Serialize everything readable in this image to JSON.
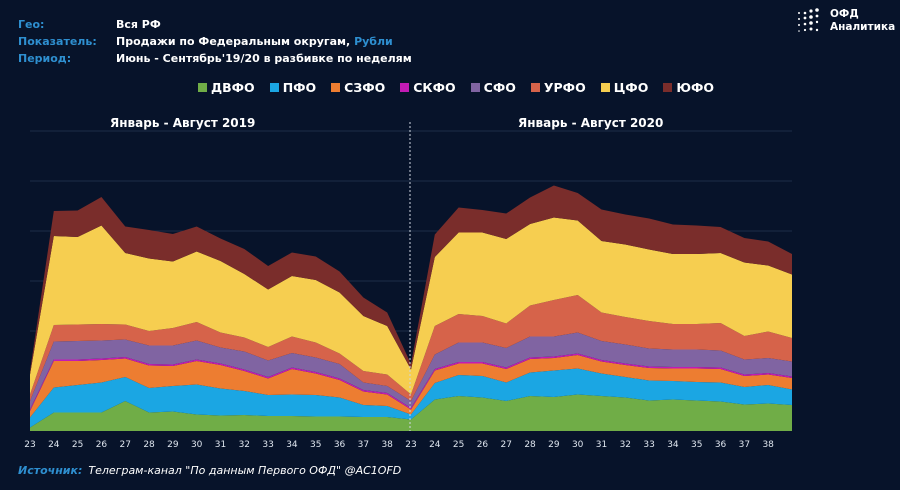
{
  "header": {
    "geo_label": "Гео:",
    "geo_value": "Вся РФ",
    "metric_label": "Показатель:",
    "metric_value": "Продажи по Федеральным округам,",
    "metric_unit": "Рубли",
    "period_label": "Период:",
    "period_value": "Июнь - Сентябрь'19/20 в разбивке по неделям"
  },
  "logo": {
    "line1": "ОФД",
    "line2": "Аналитика"
  },
  "source": {
    "label": "Источник:",
    "text": "Телеграм-канал \"По данным Первого ОФД\" @AC1OFD"
  },
  "colors": {
    "background": "#07132a",
    "grid": "#1d2c48",
    "divider": "#cfd6e0"
  },
  "chart_data": {
    "type": "area",
    "stacked": true,
    "panel_titles": [
      "Январь - Август 2019",
      "Январь - Август 2020"
    ],
    "categories": [
      "23",
      "24",
      "25",
      "26",
      "27",
      "28",
      "29",
      "30",
      "31",
      "32",
      "33",
      "34",
      "35",
      "36",
      "37",
      "38",
      "23",
      "24",
      "25",
      "26",
      "27",
      "28",
      "29",
      "30",
      "31",
      "32",
      "33",
      "34",
      "35",
      "36",
      "37",
      "38",
      ""
    ],
    "ylim": [
      0,
      60
    ],
    "grid": true,
    "legend_position": "top",
    "series": [
      {
        "name": "ДВФО",
        "color": "#70ad47",
        "values": [
          0.7,
          3.7,
          3.7,
          3.7,
          6.0,
          3.7,
          3.9,
          3.3,
          3.1,
          3.2,
          3.0,
          3.0,
          2.9,
          2.9,
          2.8,
          2.8,
          2.3,
          6.3,
          7.0,
          6.7,
          6.0,
          7.0,
          6.8,
          7.3,
          7.0,
          6.7,
          6.1,
          6.3,
          6.1,
          5.9,
          5.3,
          5.5,
          5.2
        ]
      },
      {
        "name": "ПФО",
        "color": "#1ba6e3",
        "values": [
          2.0,
          5.0,
          5.5,
          6.0,
          4.8,
          4.9,
          5.1,
          6.0,
          5.4,
          4.8,
          4.2,
          4.3,
          4.3,
          3.8,
          2.4,
          2.2,
          1.0,
          3.3,
          4.2,
          4.3,
          3.7,
          4.7,
          5.3,
          5.2,
          4.5,
          4.1,
          4.0,
          3.7,
          3.7,
          3.8,
          3.5,
          3.7,
          3.1
        ]
      },
      {
        "name": "СЗФО",
        "color": "#ed7d31",
        "values": [
          1.3,
          5.3,
          4.8,
          4.5,
          3.7,
          4.5,
          4.0,
          4.7,
          4.7,
          4.0,
          3.3,
          5.1,
          4.3,
          3.5,
          2.7,
          2.3,
          1.0,
          2.5,
          2.3,
          2.5,
          2.7,
          2.7,
          2.5,
          2.7,
          2.4,
          2.4,
          2.5,
          2.5,
          2.7,
          2.7,
          2.2,
          2.1,
          2.3
        ]
      },
      {
        "name": "СКФО",
        "color": "#c21bb5",
        "values": [
          0.3,
          0.3,
          0.3,
          0.3,
          0.3,
          0.3,
          0.3,
          0.3,
          0.3,
          0.3,
          0.3,
          0.3,
          0.3,
          0.3,
          0.3,
          0.3,
          0.3,
          0.3,
          0.3,
          0.3,
          0.3,
          0.3,
          0.3,
          0.3,
          0.3,
          0.3,
          0.3,
          0.3,
          0.3,
          0.3,
          0.3,
          0.3,
          0.3
        ]
      },
      {
        "name": "СФО",
        "color": "#8064a2",
        "values": [
          1.7,
          3.6,
          3.7,
          3.6,
          3.5,
          3.7,
          3.8,
          3.8,
          3.2,
          3.6,
          3.3,
          2.9,
          2.9,
          2.9,
          1.5,
          1.4,
          1.4,
          2.9,
          3.9,
          3.9,
          3.9,
          4.2,
          4.0,
          4.2,
          3.8,
          3.8,
          3.6,
          3.5,
          3.5,
          3.4,
          3.0,
          3.0,
          3.0
        ]
      },
      {
        "name": "УРФО",
        "color": "#d6634a",
        "values": [
          1.3,
          3.3,
          3.3,
          3.3,
          3.0,
          2.9,
          3.5,
          3.7,
          3.0,
          2.8,
          2.7,
          3.3,
          3.0,
          2.1,
          2.3,
          2.3,
          1.3,
          5.7,
          5.7,
          5.3,
          4.9,
          6.2,
          7.3,
          7.5,
          5.7,
          5.5,
          5.5,
          5.1,
          5.1,
          5.5,
          4.7,
          5.3,
          4.7
        ]
      },
      {
        "name": "ЦФО",
        "color": "#f6ce50",
        "values": [
          4.0,
          17.8,
          17.5,
          19.7,
          14.3,
          14.5,
          13.3,
          14.1,
          14.3,
          12.7,
          11.5,
          12.1,
          12.5,
          12.2,
          11.0,
          9.7,
          5.0,
          13.8,
          16.3,
          16.7,
          16.9,
          16.3,
          16.5,
          14.9,
          14.3,
          14.5,
          14.3,
          14.0,
          14.0,
          14.0,
          14.7,
          13.2,
          12.7
        ]
      },
      {
        "name": "ЮФО",
        "color": "#7a2d2b",
        "values": [
          0.7,
          5.0,
          5.3,
          5.7,
          5.3,
          5.7,
          5.5,
          5.0,
          4.5,
          5.0,
          4.7,
          4.7,
          4.7,
          4.2,
          3.7,
          2.7,
          1.1,
          4.5,
          5.0,
          4.5,
          5.1,
          5.3,
          6.4,
          5.5,
          6.3,
          6.0,
          6.2,
          5.9,
          5.7,
          5.2,
          4.9,
          4.8,
          4.1
        ]
      }
    ]
  }
}
